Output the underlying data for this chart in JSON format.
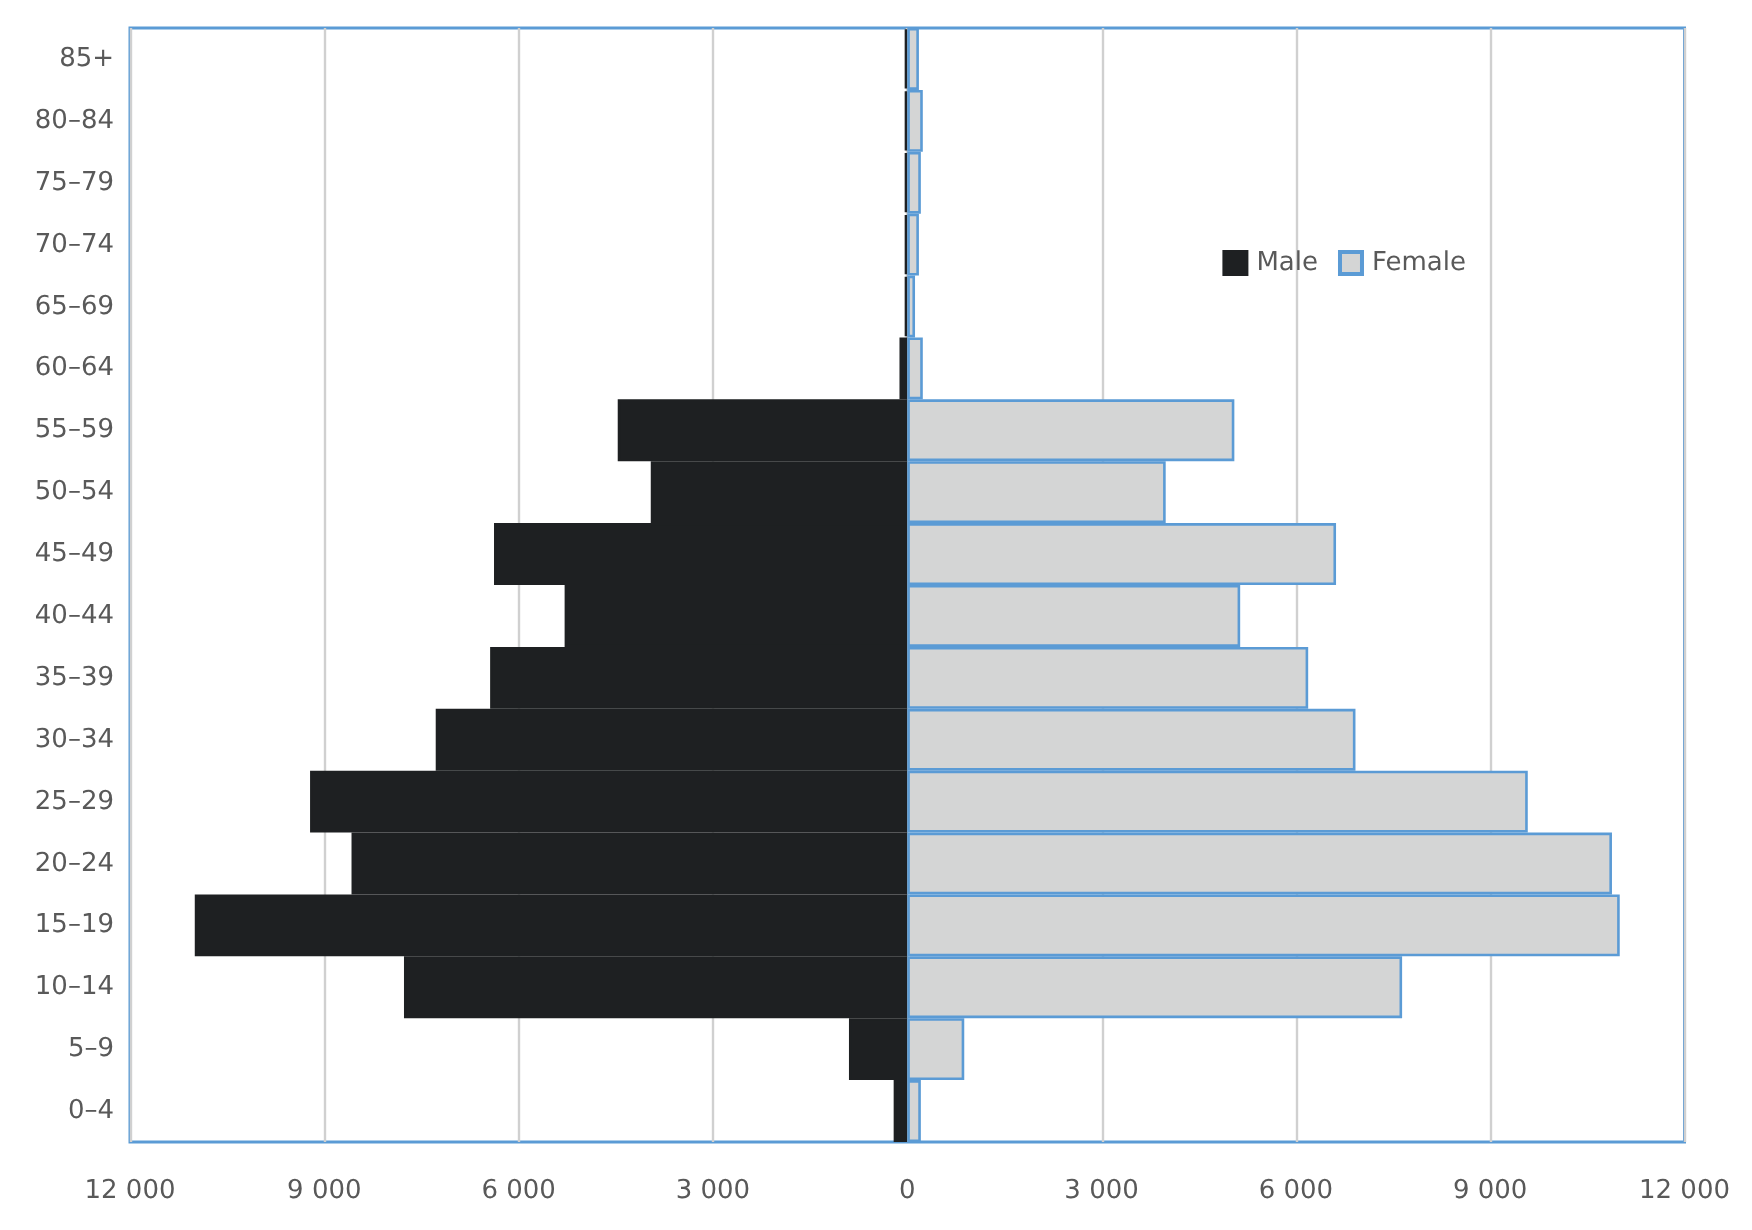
{
  "chart_data": {
    "type": "bar",
    "orientation": "horizontal",
    "stacked": true,
    "categories": [
      "85+",
      "80–84",
      "75–79",
      "70–74",
      "65–69",
      "60–64",
      "55–59",
      "50–54",
      "45–49",
      "40–44",
      "35–39",
      "30–34",
      "25–29",
      "20–24",
      "15–19",
      "10–14",
      "5–9",
      "0–4"
    ],
    "series": [
      {
        "name": "Male",
        "color": "#1e2022",
        "values": [
          -40,
          -40,
          -40,
          -40,
          -40,
          -120,
          -4470,
          -3960,
          -6380,
          -5290,
          -6440,
          -7280,
          -9220,
          -8580,
          -11000,
          -7770,
          -900,
          -210
        ]
      },
      {
        "name": "Female",
        "color": "#d4d5d5",
        "values": [
          180,
          240,
          210,
          180,
          120,
          240,
          5050,
          3990,
          6620,
          5140,
          6190,
          6920,
          9580,
          10880,
          11000,
          7640,
          880,
          210
        ]
      }
    ],
    "xlim": [
      -12000,
      12000
    ],
    "xticks": [
      {
        "value": -12000,
        "label": "12 000"
      },
      {
        "value": -9000,
        "label": "9 000"
      },
      {
        "value": -6000,
        "label": "6 000"
      },
      {
        "value": -3000,
        "label": "3 000"
      },
      0,
      {
        "value": 3000,
        "label": "3 000"
      },
      {
        "value": 6000,
        "label": "6 000"
      },
      {
        "value": 9000,
        "label": "9 000"
      },
      {
        "value": 12000,
        "label": "12 000"
      }
    ],
    "grid": "x",
    "legend": "top right"
  }
}
